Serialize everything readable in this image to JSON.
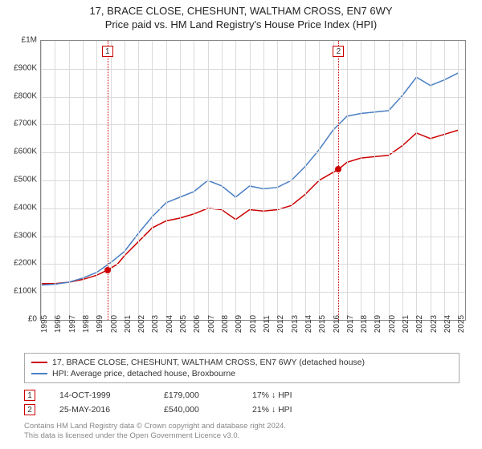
{
  "title": {
    "line1": "17, BRACE CLOSE, CHESHUNT, WALTHAM CROSS, EN7 6WY",
    "line2": "Price paid vs. HM Land Registry's House Price Index (HPI)",
    "fontsize": 13,
    "color": "#222222"
  },
  "chart": {
    "type": "line",
    "background_color": "#ffffff",
    "grid_color": "#dadada",
    "border_color": "#888888",
    "x": {
      "min": 1995,
      "max": 2025.5,
      "ticks": [
        1995,
        1996,
        1997,
        1998,
        1999,
        2000,
        2001,
        2002,
        2003,
        2004,
        2005,
        2006,
        2007,
        2008,
        2009,
        2010,
        2011,
        2012,
        2013,
        2014,
        2015,
        2016,
        2017,
        2018,
        2019,
        2020,
        2021,
        2022,
        2023,
        2024,
        2025
      ],
      "label_fontsize": 10,
      "label_rotation": -90
    },
    "y": {
      "min": 0,
      "max": 1000000,
      "ticks": [
        0,
        100000,
        200000,
        300000,
        400000,
        500000,
        600000,
        700000,
        800000,
        900000,
        1000000
      ],
      "tick_labels": [
        "£0",
        "£100K",
        "£200K",
        "£300K",
        "£400K",
        "£500K",
        "£600K",
        "£700K",
        "£800K",
        "£900K",
        "£1M"
      ],
      "label_fontsize": 10
    },
    "series": [
      {
        "name": "property",
        "label": "17, BRACE CLOSE, CHESHUNT, WALTHAM CROSS, EN7 6WY (detached house)",
        "color": "#cc0000",
        "line_width": 1.5,
        "points": [
          [
            1995,
            130000
          ],
          [
            1996,
            130000
          ],
          [
            1997,
            135000
          ],
          [
            1998,
            145000
          ],
          [
            1999,
            160000
          ],
          [
            1999.8,
            179000
          ],
          [
            2000.5,
            200000
          ],
          [
            2001,
            230000
          ],
          [
            2002,
            280000
          ],
          [
            2003,
            330000
          ],
          [
            2004,
            355000
          ],
          [
            2005,
            365000
          ],
          [
            2006,
            380000
          ],
          [
            2007,
            400000
          ],
          [
            2008,
            395000
          ],
          [
            2009,
            360000
          ],
          [
            2010,
            395000
          ],
          [
            2011,
            390000
          ],
          [
            2012,
            395000
          ],
          [
            2013,
            410000
          ],
          [
            2014,
            450000
          ],
          [
            2015,
            500000
          ],
          [
            2016.4,
            540000
          ],
          [
            2017,
            565000
          ],
          [
            2018,
            580000
          ],
          [
            2019,
            585000
          ],
          [
            2020,
            590000
          ],
          [
            2021,
            625000
          ],
          [
            2022,
            670000
          ],
          [
            2023,
            650000
          ],
          [
            2024,
            665000
          ],
          [
            2025,
            680000
          ]
        ]
      },
      {
        "name": "hpi",
        "label": "HPI: Average price, detached house, Broxbourne",
        "color": "#4a7fc4",
        "line_width": 1.5,
        "points": [
          [
            1995,
            125000
          ],
          [
            1996,
            128000
          ],
          [
            1997,
            135000
          ],
          [
            1998,
            150000
          ],
          [
            1999,
            170000
          ],
          [
            2000,
            205000
          ],
          [
            2001,
            245000
          ],
          [
            2002,
            310000
          ],
          [
            2003,
            370000
          ],
          [
            2004,
            420000
          ],
          [
            2005,
            440000
          ],
          [
            2006,
            460000
          ],
          [
            2007,
            500000
          ],
          [
            2008,
            480000
          ],
          [
            2009,
            440000
          ],
          [
            2010,
            480000
          ],
          [
            2011,
            470000
          ],
          [
            2012,
            475000
          ],
          [
            2013,
            500000
          ],
          [
            2014,
            550000
          ],
          [
            2015,
            610000
          ],
          [
            2016,
            680000
          ],
          [
            2017,
            730000
          ],
          [
            2018,
            740000
          ],
          [
            2019,
            745000
          ],
          [
            2020,
            750000
          ],
          [
            2021,
            805000
          ],
          [
            2022,
            870000
          ],
          [
            2023,
            840000
          ],
          [
            2024,
            860000
          ],
          [
            2025,
            885000
          ]
        ]
      }
    ],
    "transactions": [
      {
        "num": "1",
        "date_x": 1999.78,
        "date_label": "14-OCT-1999",
        "price": 179000,
        "price_label": "£179,000",
        "diff": "17% ↓ HPI",
        "color": "#cc0000"
      },
      {
        "num": "2",
        "date_x": 2016.4,
        "date_label": "25-MAY-2016",
        "price": 540000,
        "price_label": "£540,000",
        "diff": "21% ↓ HPI",
        "color": "#cc0000"
      }
    ]
  },
  "footnote": {
    "line1": "Contains HM Land Registry data © Crown copyright and database right 2024.",
    "line2": "This data is licensed under the Open Government Licence v3.0."
  }
}
